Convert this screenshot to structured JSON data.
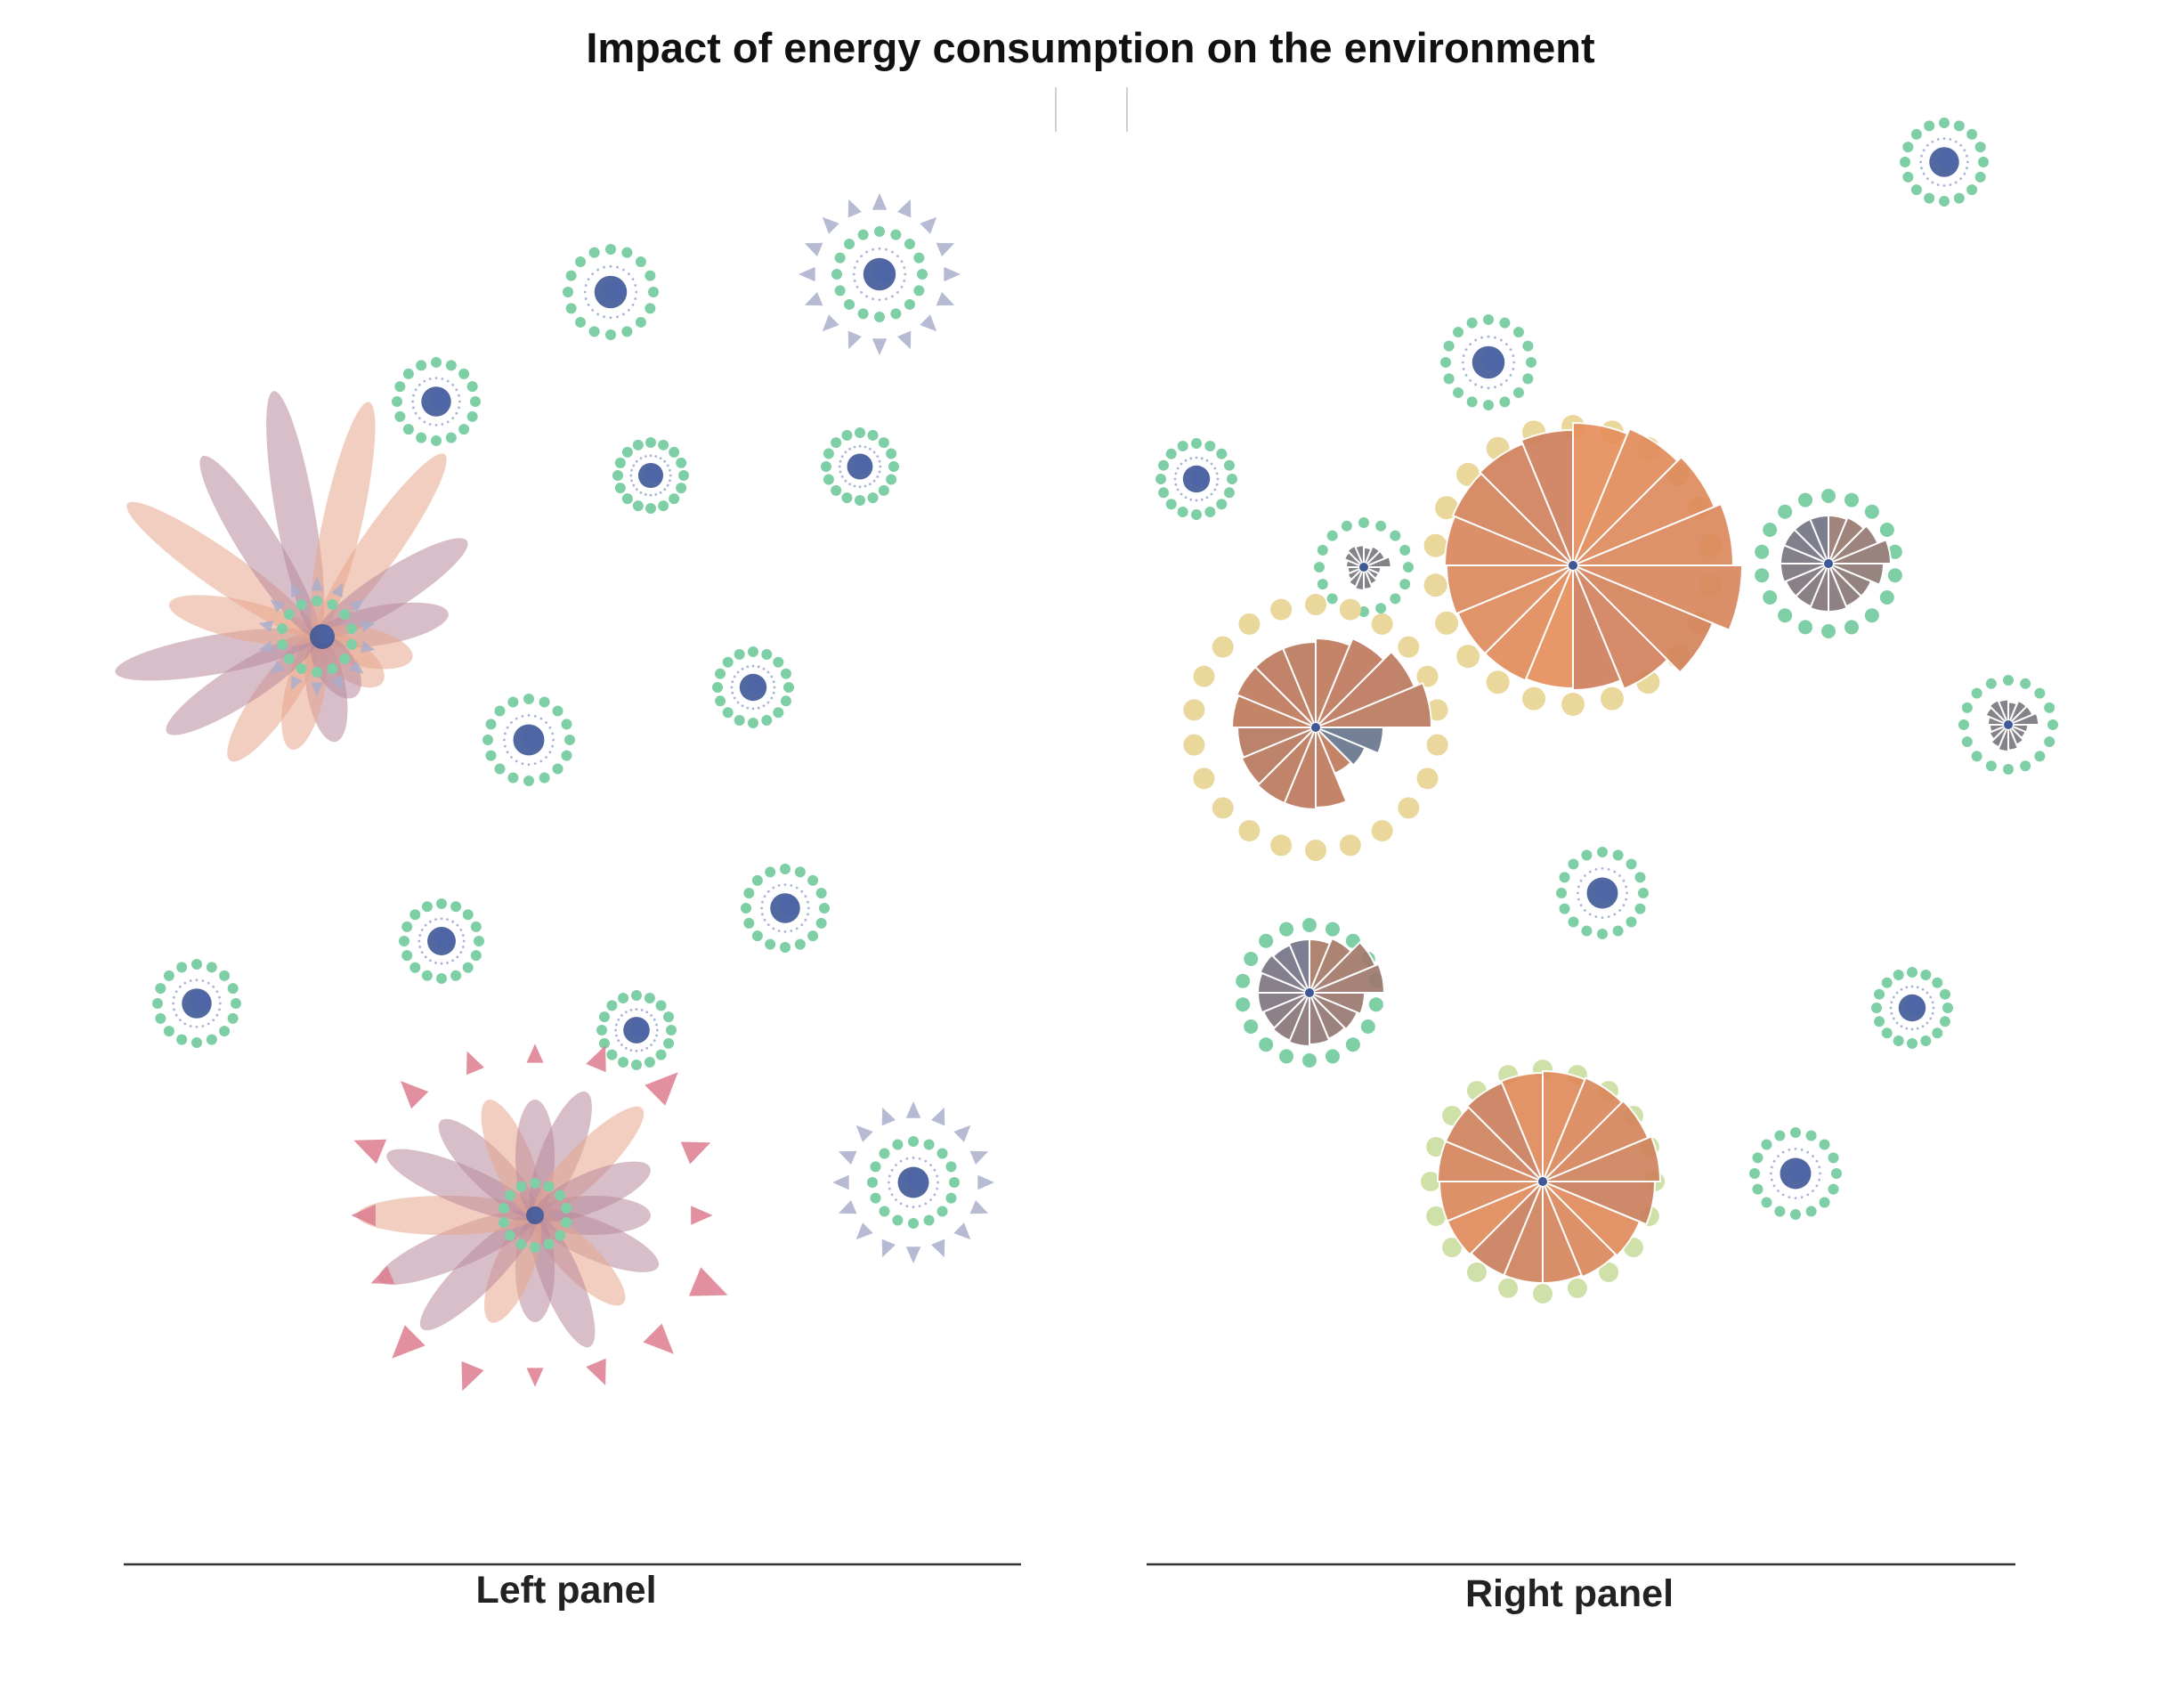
{
  "title": "Impact of energy consumption on the environment",
  "panels": {
    "left": {
      "label": "Left panel"
    },
    "right": {
      "label": "Right panel"
    }
  },
  "colors": {
    "ring_dot": "#7ecfa6",
    "ring_dot_warm": "#e9d79b",
    "core": "#3f5896",
    "petal_warm": "#e8a58c",
    "petal_cool": "#b8899a",
    "triangle_cool": "#a9aecb",
    "triangle_warm": "#dd7d8e",
    "wedge_warm": "#e0875a",
    "wedge_mid": "#c47e5e",
    "wedge_cool": "#7c7880",
    "axis_line": "#333333",
    "divider": "#cfcfcf"
  },
  "chart_data": {
    "type": "glyph",
    "title": "Impact of energy consumption on the environment",
    "panels": [
      "Left panel",
      "Right panel"
    ],
    "glyph_styles": {
      "Left panel": "flower (petals + triangle markers)",
      "Right panel": "radial bar (wedges)"
    },
    "legend": "none",
    "axes": "none",
    "grid": false
  }
}
